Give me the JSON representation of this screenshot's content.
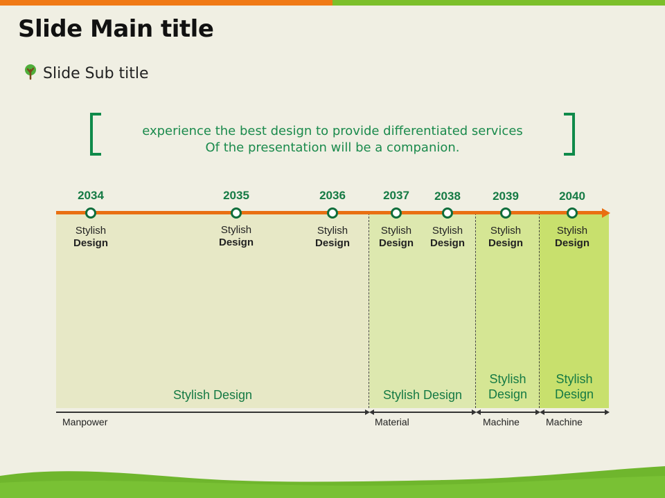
{
  "header": {
    "title": "Slide Main title",
    "subtitle": "Slide Sub title"
  },
  "quote": {
    "line1": "experience the best design to provide differentiated services",
    "line2": "Of the presentation will be a companion."
  },
  "milestones": [
    {
      "year": "2034",
      "label1": "Stylish",
      "label2": "Design"
    },
    {
      "year": "2035",
      "label1": "Stylish",
      "label2": "Design"
    },
    {
      "year": "2036",
      "label1": "Stylish",
      "label2": "Design"
    },
    {
      "year": "2037",
      "label1": "Stylish",
      "label2": "Design"
    },
    {
      "year": "2038",
      "label1": "Stylish",
      "label2": "Design"
    },
    {
      "year": "2039",
      "label1": "Stylish",
      "label2": "Design"
    },
    {
      "year": "2040",
      "label1": "Stylish",
      "label2": "Design"
    }
  ],
  "zones": [
    {
      "label": "Stylish Design"
    },
    {
      "label": "Stylish Design"
    },
    {
      "label1": "Stylish",
      "label2": "Design"
    },
    {
      "label1": "Stylish",
      "label2": "Design"
    }
  ],
  "ranges": [
    {
      "label": "Manpower"
    },
    {
      "label": "Material"
    },
    {
      "label": "Machine"
    },
    {
      "label": "Machine"
    }
  ],
  "colors": {
    "accent_orange": "#f07a16",
    "accent_green": "#7cbf2a",
    "text_green": "#157a44"
  }
}
